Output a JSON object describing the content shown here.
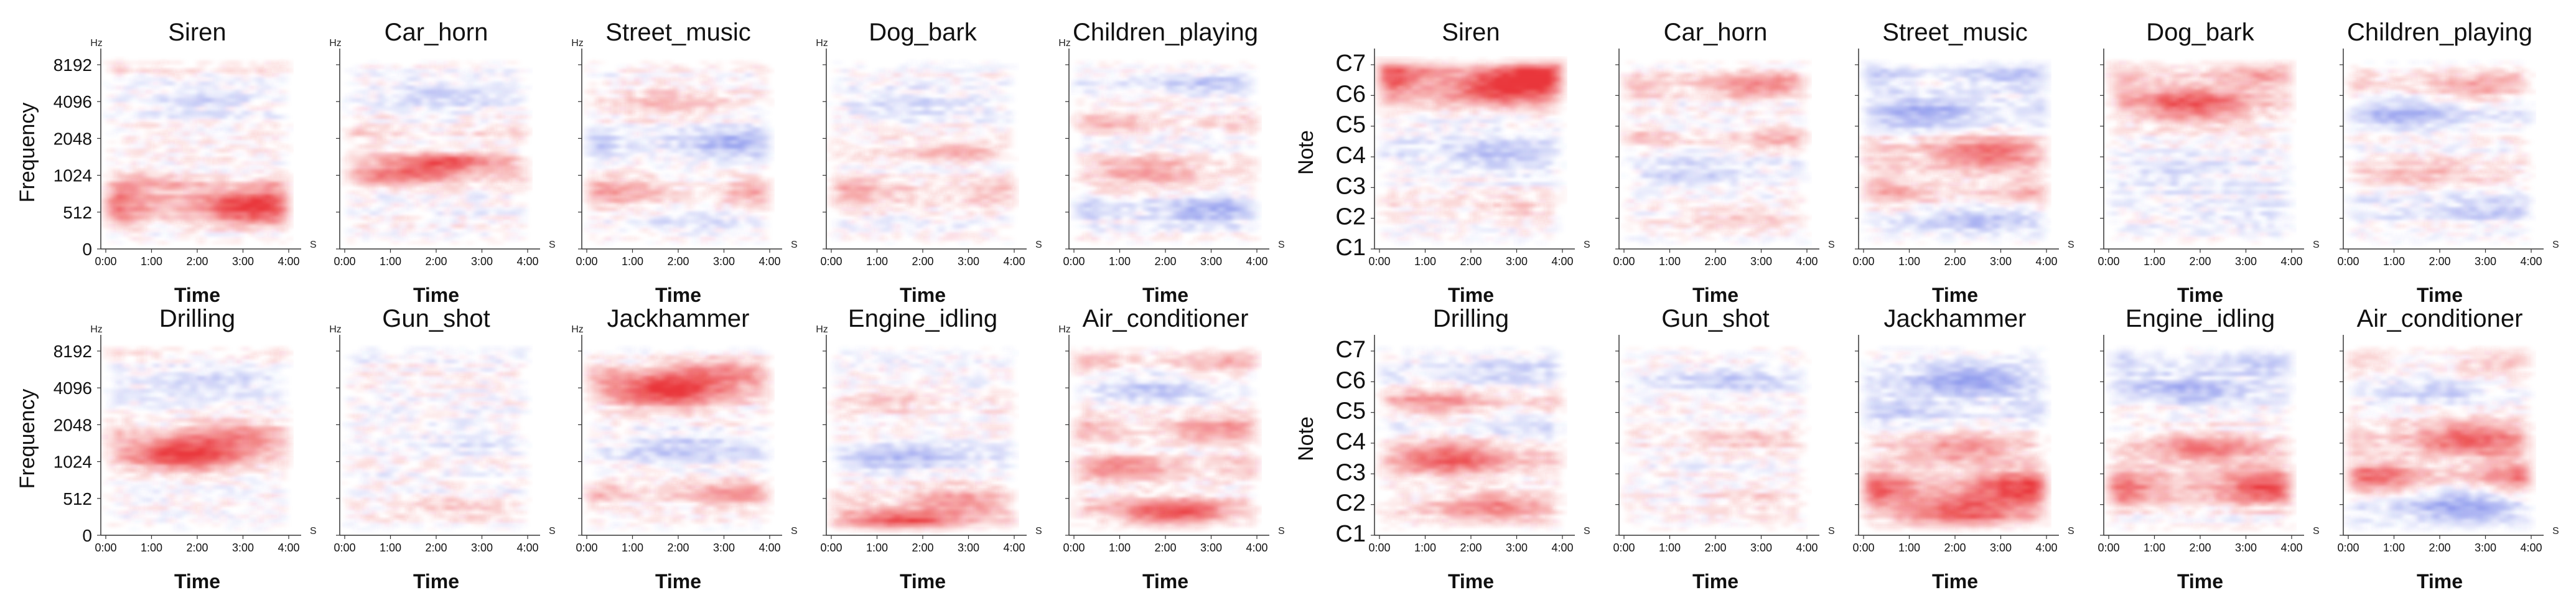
{
  "chart_data": [
    {
      "type": "heatmap",
      "name": "frequency-grid",
      "xlabel": "Time",
      "ylabel": "Frequency",
      "y_unit": "Hz",
      "x_unit": "S",
      "x_ticks": [
        "0:00",
        "1:00",
        "2:00",
        "3:00",
        "4:00"
      ],
      "y_ticks": [
        "8192",
        "4096",
        "2048",
        "1024",
        "512",
        "0"
      ],
      "colors": {
        "positive": "#e8262a",
        "negative": "#3c4fe0"
      },
      "panels": [
        {
          "title": "Siren",
          "bands": [
            [
              0.78,
              0.7,
              1.0
            ],
            [
              0.66,
              0.3,
              0.4
            ],
            [
              0.22,
              0.3,
              -0.3
            ],
            [
              0.05,
              0.15,
              0.2
            ]
          ]
        },
        {
          "title": "Car_horn",
          "bands": [
            [
              0.55,
              0.1,
              0.9
            ],
            [
              0.62,
              0.08,
              0.7
            ],
            [
              0.4,
              0.3,
              0.25
            ],
            [
              0.2,
              0.4,
              -0.25
            ]
          ]
        },
        {
          "title": "Street_music",
          "bands": [
            [
              0.7,
              0.4,
              0.5
            ],
            [
              0.45,
              0.5,
              -0.45
            ],
            [
              0.25,
              0.5,
              0.3
            ],
            [
              0.85,
              0.3,
              -0.2
            ]
          ]
        },
        {
          "title": "Dog_bark",
          "bands": [
            [
              0.7,
              0.5,
              0.35
            ],
            [
              0.5,
              0.1,
              0.4
            ],
            [
              0.25,
              0.4,
              -0.2
            ]
          ]
        },
        {
          "title": "Children_playing",
          "bands": [
            [
              0.6,
              0.5,
              0.45
            ],
            [
              0.8,
              0.4,
              -0.45
            ],
            [
              0.35,
              0.3,
              0.3
            ],
            [
              0.15,
              0.3,
              -0.3
            ]
          ]
        },
        {
          "title": "Drilling",
          "bands": [
            [
              0.58,
              0.6,
              1.0
            ],
            [
              0.48,
              0.4,
              0.5
            ],
            [
              0.2,
              0.4,
              -0.2
            ],
            [
              0.05,
              0.15,
              0.25
            ]
          ]
        },
        {
          "title": "Gun_shot",
          "bands": [
            [
              0.85,
              0.2,
              0.25
            ],
            [
              0.5,
              0.5,
              -0.15
            ],
            [
              0.05,
              0.15,
              -0.12
            ]
          ]
        },
        {
          "title": "Jackhammer",
          "bands": [
            [
              0.25,
              0.6,
              1.0
            ],
            [
              0.15,
              0.4,
              0.5
            ],
            [
              0.78,
              0.3,
              0.5
            ],
            [
              0.55,
              0.4,
              -0.3
            ]
          ]
        },
        {
          "title": "Engine_idling",
          "bands": [
            [
              0.93,
              0.2,
              1.0
            ],
            [
              0.82,
              0.4,
              0.5
            ],
            [
              0.6,
              0.4,
              -0.35
            ],
            [
              0.3,
              0.4,
              0.25
            ]
          ]
        },
        {
          "title": "Air_conditioner",
          "bands": [
            [
              0.88,
              0.5,
              0.8
            ],
            [
              0.65,
              0.4,
              0.6
            ],
            [
              0.45,
              0.5,
              0.5
            ],
            [
              0.25,
              0.4,
              -0.35
            ],
            [
              0.1,
              0.4,
              0.4
            ]
          ]
        }
      ]
    },
    {
      "type": "heatmap",
      "name": "note-grid",
      "xlabel": "Time",
      "ylabel": "Note",
      "x_unit": "S",
      "x_ticks": [
        "0:00",
        "1:00",
        "2:00",
        "3:00",
        "4:00"
      ],
      "y_ticks": [
        "C7",
        "C6",
        "C5",
        "C4",
        "C3",
        "C2",
        "C1"
      ],
      "colors": {
        "positive": "#e8262a",
        "negative": "#3c4fe0"
      },
      "panels": [
        {
          "title": "Siren",
          "bands": [
            [
              0.13,
              0.7,
              1.0
            ],
            [
              0.05,
              0.4,
              0.5
            ],
            [
              0.2,
              0.3,
              0.4
            ],
            [
              0.5,
              0.5,
              -0.3
            ],
            [
              0.8,
              0.4,
              0.2
            ]
          ]
        },
        {
          "title": "Car_horn",
          "bands": [
            [
              0.15,
              0.4,
              0.6
            ],
            [
              0.42,
              0.3,
              0.4
            ],
            [
              0.6,
              0.4,
              -0.25
            ],
            [
              0.85,
              0.4,
              0.25
            ]
          ]
        },
        {
          "title": "Street_music",
          "bands": [
            [
              0.5,
              0.6,
              0.7
            ],
            [
              0.3,
              0.5,
              -0.5
            ],
            [
              0.7,
              0.5,
              0.4
            ],
            [
              0.1,
              0.4,
              -0.35
            ],
            [
              0.85,
              0.4,
              -0.3
            ]
          ]
        },
        {
          "title": "Dog_bark",
          "bands": [
            [
              0.25,
              0.7,
              0.8
            ],
            [
              0.1,
              0.5,
              0.4
            ],
            [
              0.6,
              0.5,
              -0.2
            ],
            [
              0.8,
              0.4,
              -0.15
            ]
          ]
        },
        {
          "title": "Children_playing",
          "bands": [
            [
              0.3,
              0.5,
              -0.45
            ],
            [
              0.15,
              0.4,
              0.4
            ],
            [
              0.6,
              0.4,
              0.3
            ],
            [
              0.8,
              0.4,
              -0.25
            ]
          ]
        },
        {
          "title": "Drilling",
          "bands": [
            [
              0.6,
              0.6,
              0.8
            ],
            [
              0.3,
              0.4,
              0.5
            ],
            [
              0.85,
              0.5,
              0.6
            ],
            [
              0.15,
              0.4,
              -0.25
            ],
            [
              0.45,
              0.4,
              -0.2
            ]
          ]
        },
        {
          "title": "Gun_shot",
          "bands": [
            [
              0.5,
              0.3,
              0.3
            ],
            [
              0.2,
              0.4,
              -0.25
            ],
            [
              0.8,
              0.3,
              0.2
            ]
          ]
        },
        {
          "title": "Jackhammer",
          "bands": [
            [
              0.75,
              0.7,
              0.9
            ],
            [
              0.88,
              0.6,
              0.8
            ],
            [
              0.55,
              0.5,
              0.5
            ],
            [
              0.2,
              0.5,
              -0.5
            ],
            [
              0.35,
              0.4,
              -0.3
            ]
          ]
        },
        {
          "title": "Engine_idling",
          "bands": [
            [
              0.75,
              0.7,
              0.9
            ],
            [
              0.55,
              0.5,
              0.6
            ],
            [
              0.25,
              0.5,
              -0.4
            ],
            [
              0.1,
              0.4,
              -0.3
            ]
          ]
        },
        {
          "title": "Air_conditioner",
          "bands": [
            [
              0.5,
              0.7,
              0.8
            ],
            [
              0.7,
              0.6,
              0.7
            ],
            [
              0.85,
              0.6,
              -0.5
            ],
            [
              0.25,
              0.4,
              -0.3
            ],
            [
              0.1,
              0.4,
              0.3
            ]
          ]
        }
      ]
    }
  ]
}
